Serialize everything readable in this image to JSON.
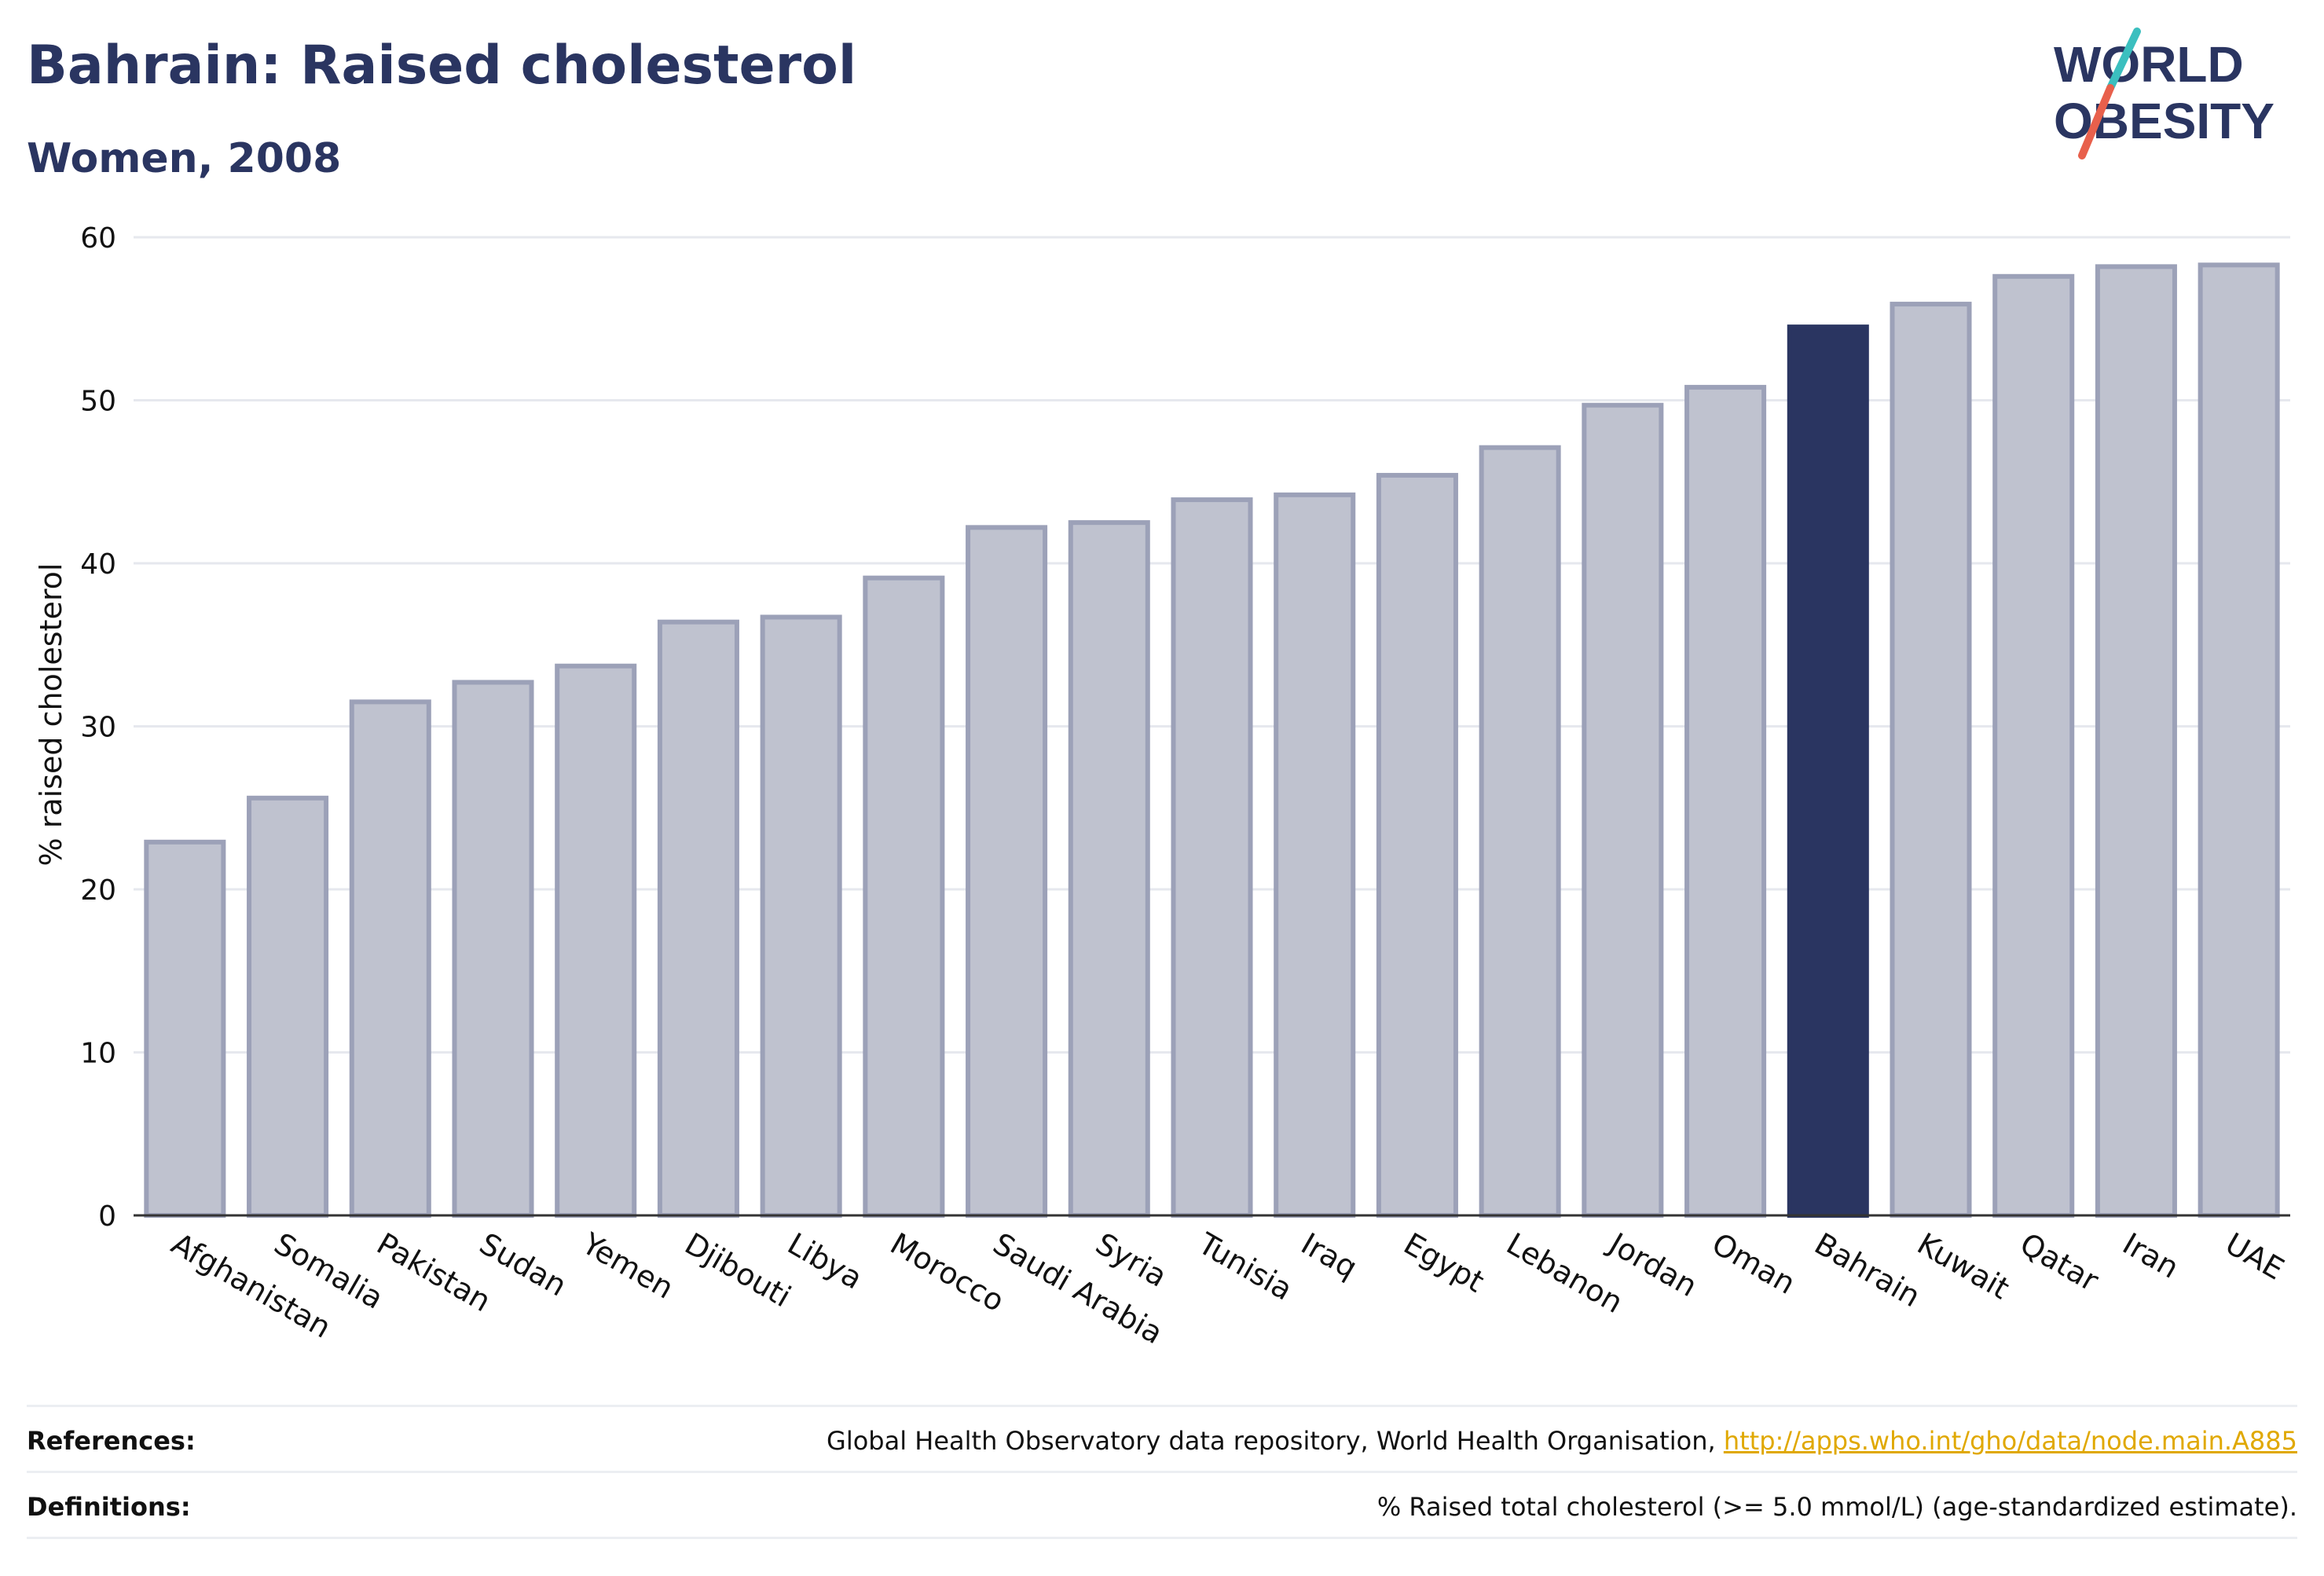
{
  "header": {
    "title": "Bahrain: Raised cholesterol",
    "subtitle": "Women, 2008"
  },
  "logo": {
    "line1": "WORLD",
    "line2": "OBESITY",
    "colors": {
      "text": "#2a3561",
      "slash_teal": "#3bbfbf",
      "slash_red": "#e8604c"
    }
  },
  "chart_data": {
    "type": "bar",
    "ylabel": "% raised cholesterol",
    "xlabel": "",
    "ylim": [
      0,
      60
    ],
    "yticks": [
      0,
      10,
      20,
      30,
      40,
      50,
      60
    ],
    "grid": true,
    "highlight": "Bahrain",
    "colors": {
      "bar": "#bfc2cf",
      "bar_border": "#9ca1b8",
      "highlight": "#2a3561",
      "grid": "#e6e8ee",
      "axis": "#333333"
    },
    "categories": [
      "Afghanistan",
      "Somalia",
      "Pakistan",
      "Sudan",
      "Yemen",
      "Djibouti",
      "Libya",
      "Morocco",
      "Saudi Arabia",
      "Syria",
      "Tunisia",
      "Iraq",
      "Egypt",
      "Lebanon",
      "Jordan",
      "Oman",
      "Bahrain",
      "Kuwait",
      "Qatar",
      "Iran",
      "UAE"
    ],
    "values": [
      22.9,
      25.6,
      31.5,
      32.7,
      33.7,
      36.4,
      36.7,
      39.1,
      42.2,
      42.5,
      43.9,
      44.2,
      45.4,
      47.1,
      49.7,
      50.8,
      54.5,
      55.9,
      57.6,
      58.2,
      58.3
    ]
  },
  "footer": {
    "references_label": "References:",
    "references_text": "Global Health Observatory data repository, World Health Organisation, ",
    "references_link": "http://apps.who.int/gho/data/node.main.A885",
    "definitions_label": "Definitions:",
    "definitions_text": "% Raised total cholesterol (>= 5.0 mmol/L) (age-standardized estimate)."
  }
}
